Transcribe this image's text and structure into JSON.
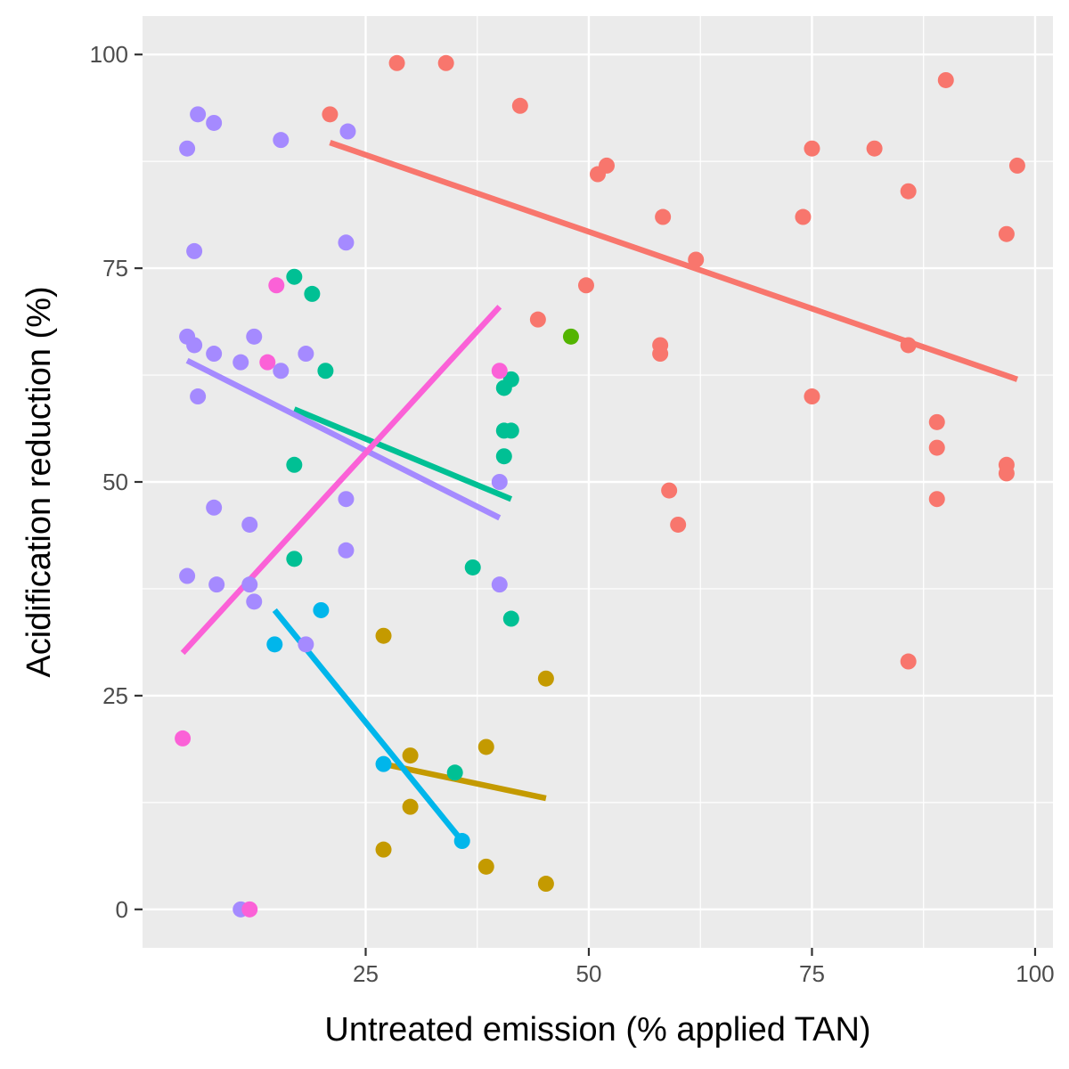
{
  "chart_data": {
    "type": "scatter",
    "title": "",
    "xlabel": "Untreated emission (% applied TAN)",
    "ylabel": "Acidification reduction (%)",
    "xlim": [
      0,
      102
    ],
    "ylim": [
      -4.5,
      104.5
    ],
    "x_ticks": [
      25,
      50,
      75,
      100
    ],
    "y_ticks": [
      0,
      25,
      50,
      75,
      100
    ],
    "x_tick_labels": [
      "25",
      "50",
      "75",
      "100"
    ],
    "y_tick_labels": [
      "0",
      "25",
      "50",
      "75",
      "100"
    ],
    "grid": true,
    "legend": "none",
    "panel_background": "#ebebeb",
    "series": [
      {
        "color": "#f8766d",
        "points": [
          [
            21,
            93
          ],
          [
            28.5,
            99
          ],
          [
            34,
            99
          ],
          [
            42.3,
            94
          ],
          [
            44.3,
            69
          ],
          [
            49.7,
            73
          ],
          [
            51,
            86
          ],
          [
            52,
            87
          ],
          [
            58.3,
            81
          ],
          [
            58,
            66
          ],
          [
            58,
            65
          ],
          [
            59,
            49
          ],
          [
            60,
            45
          ],
          [
            62,
            76
          ],
          [
            74,
            81
          ],
          [
            75,
            89
          ],
          [
            75,
            60
          ],
          [
            82,
            89
          ],
          [
            85.8,
            84
          ],
          [
            85.8,
            66
          ],
          [
            85.8,
            29
          ],
          [
            89,
            57
          ],
          [
            89,
            54
          ],
          [
            89,
            48
          ],
          [
            90,
            97
          ],
          [
            96.8,
            79
          ],
          [
            96.8,
            52
          ],
          [
            96.8,
            51
          ],
          [
            98,
            87
          ]
        ],
        "fit": [
          [
            21,
            89.7
          ],
          [
            98,
            62
          ]
        ]
      },
      {
        "color": "#c49a00",
        "points": [
          [
            27,
            32
          ],
          [
            27,
            7
          ],
          [
            30,
            18
          ],
          [
            30,
            12
          ],
          [
            38.5,
            19
          ],
          [
            38.5,
            5
          ],
          [
            45.2,
            27
          ],
          [
            45.2,
            3
          ]
        ],
        "fit": [
          [
            27,
            17
          ],
          [
            45.2,
            13
          ]
        ]
      },
      {
        "color": "#53b400",
        "points": [
          [
            48,
            67
          ]
        ]
      },
      {
        "color": "#00c094",
        "points": [
          [
            17,
            74
          ],
          [
            17,
            52
          ],
          [
            17,
            41
          ],
          [
            19,
            72
          ],
          [
            20.5,
            63
          ],
          [
            35,
            16
          ],
          [
            37,
            40
          ],
          [
            40.5,
            61
          ],
          [
            40.5,
            56
          ],
          [
            40.5,
            53
          ],
          [
            41.3,
            62
          ],
          [
            41.3,
            56
          ],
          [
            41.3,
            34
          ]
        ],
        "fit": [
          [
            17,
            58.5
          ],
          [
            41.3,
            48
          ]
        ]
      },
      {
        "color": "#00b6eb",
        "points": [
          [
            14.8,
            31
          ],
          [
            20,
            35
          ],
          [
            27,
            17
          ],
          [
            35.8,
            8
          ]
        ],
        "fit": [
          [
            14.8,
            35
          ],
          [
            35.8,
            8
          ]
        ]
      },
      {
        "color": "#a58aff",
        "points": [
          [
            5,
            89
          ],
          [
            5,
            67
          ],
          [
            5,
            39
          ],
          [
            5.8,
            66
          ],
          [
            5.8,
            77
          ],
          [
            6.2,
            93
          ],
          [
            6.2,
            60
          ],
          [
            8,
            92
          ],
          [
            8,
            65
          ],
          [
            8,
            47
          ],
          [
            8.3,
            38
          ],
          [
            11,
            64
          ],
          [
            11,
            0
          ],
          [
            12,
            45
          ],
          [
            12,
            38
          ],
          [
            12.5,
            67
          ],
          [
            12.5,
            36
          ],
          [
            15.5,
            90
          ],
          [
            15.5,
            63
          ],
          [
            18.3,
            65
          ],
          [
            18.3,
            31
          ],
          [
            22.8,
            78
          ],
          [
            22.8,
            48
          ],
          [
            22.8,
            42
          ],
          [
            23,
            91
          ],
          [
            40,
            50
          ],
          [
            40,
            38
          ]
        ],
        "fit": [
          [
            5,
            64.2
          ],
          [
            40,
            45.8
          ]
        ]
      },
      {
        "color": "#fb61d7",
        "points": [
          [
            4.5,
            20
          ],
          [
            12,
            0
          ],
          [
            14,
            64
          ],
          [
            15,
            73
          ],
          [
            40,
            63
          ]
        ],
        "fit": [
          [
            4.5,
            30
          ],
          [
            40,
            70.5
          ]
        ]
      }
    ]
  }
}
